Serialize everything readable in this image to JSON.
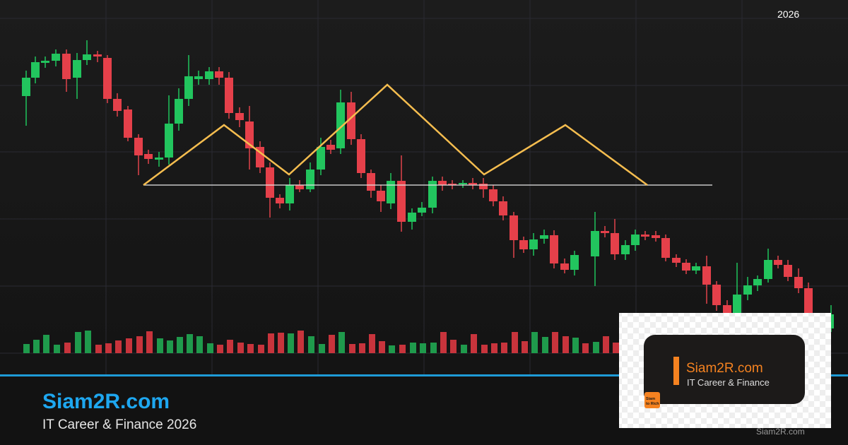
{
  "header": {
    "year": "2026"
  },
  "footer": {
    "brand": "Siam2R.com",
    "tagline": "IT Career & Finance 2026"
  },
  "card": {
    "brand": "Siam2R.com",
    "tagline": "IT Career & Finance",
    "logo_line_1": "Siam",
    "logo_line_2": "to Rich",
    "watermark": "Siam2R.com"
  }
}
